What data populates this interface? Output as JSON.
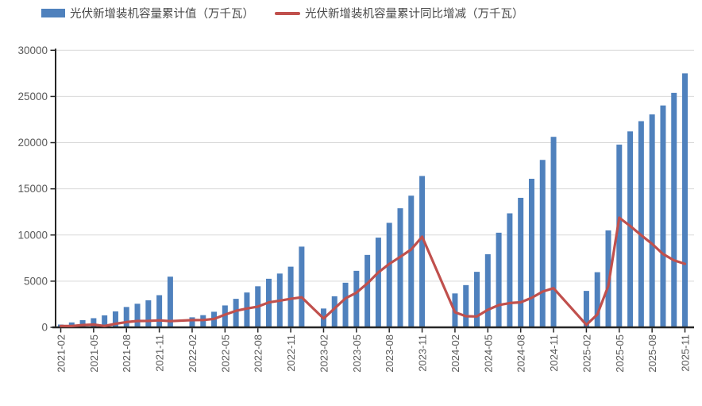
{
  "chart_data": {
    "type": "bar+line",
    "title": "",
    "xlabel": "",
    "ylabel": "",
    "ylim": [
      0,
      30000
    ],
    "ytick_step": 5000,
    "grid": true,
    "legend_position": "top",
    "yticks": [
      "0",
      "5000",
      "10000",
      "15000",
      "20000",
      "25000",
      "30000"
    ],
    "xtick_every": 3,
    "categories": [
      "2021-02",
      "2021-03",
      "2021-04",
      "2021-05",
      "2021-06",
      "2021-07",
      "2021-08",
      "2021-09",
      "2021-10",
      "2021-11",
      "2021-12",
      "2022-01",
      "2022-02",
      "2022-03",
      "2022-04",
      "2022-05",
      "2022-06",
      "2022-07",
      "2022-08",
      "2022-09",
      "2022-10",
      "2022-11",
      "2022-12",
      "2023-01",
      "2023-02",
      "2023-03",
      "2023-04",
      "2023-05",
      "2023-06",
      "2023-07",
      "2023-08",
      "2023-09",
      "2023-10",
      "2023-11",
      "2023-12",
      "2024-01",
      "2024-02",
      "2024-03",
      "2024-04",
      "2024-05",
      "2024-06",
      "2024-07",
      "2024-08",
      "2024-09",
      "2024-10",
      "2024-11",
      "2024-12",
      "2025-01",
      "2025-02",
      "2025-03",
      "2025-04",
      "2025-05",
      "2025-06",
      "2025-07",
      "2025-08",
      "2025-09",
      "2025-10",
      "2025-11"
    ],
    "xtick_labels": [
      "2021-02",
      "2021-05",
      "2021-08",
      "2021-11",
      "2022-02",
      "2022-05",
      "2022-08",
      "2022-11",
      "2023-02",
      "2023-05",
      "2023-08",
      "2023-11",
      "2024-02",
      "2024-05",
      "2024-08",
      "2024-11",
      "2025-02",
      "2025-05",
      "2025-08",
      "2025-11"
    ],
    "series": [
      {
        "name": "光伏新增装机容量累计值（万千瓦）",
        "type": "bar",
        "color": "#4f81bd",
        "values": [
          300,
          533,
          780,
          991,
          1301,
          1730,
          2205,
          2556,
          2931,
          3483,
          5488,
          null,
          1086,
          1321,
          1688,
          2371,
          3088,
          3773,
          4447,
          5260,
          5824,
          6571,
          8741,
          null,
          2037,
          3366,
          4831,
          6121,
          7842,
          9716,
          11316,
          12894,
          14256,
          16388,
          null,
          null,
          3672,
          4574,
          6011,
          7915,
          10248,
          12346,
          14026,
          16088,
          18130,
          20630,
          null,
          null,
          3947,
          5971,
          10493,
          19785,
          21221,
          22325,
          23061,
          24027,
          25391,
          27500
        ]
      },
      {
        "name": "光伏新增装机容量累计同比增减（万千瓦）",
        "type": "line",
        "color": "#c0504d",
        "values": [
          150,
          140,
          250,
          300,
          150,
          390,
          570,
          690,
          700,
          760,
          668,
          null,
          786,
          788,
          908,
          1380,
          1787,
          2043,
          2242,
          2704,
          2893,
          3088,
          3253,
          null,
          951,
          2045,
          3143,
          3750,
          4754,
          5943,
          6869,
          7634,
          8432,
          9817,
          null,
          null,
          1635,
          1208,
          1180,
          1904,
          2406,
          2630,
          2710,
          3194,
          3874,
          4242,
          null,
          null,
          275,
          1397,
          4482,
          11870,
          10973,
          9979,
          9035,
          7939,
          7261,
          6870
        ]
      }
    ]
  }
}
